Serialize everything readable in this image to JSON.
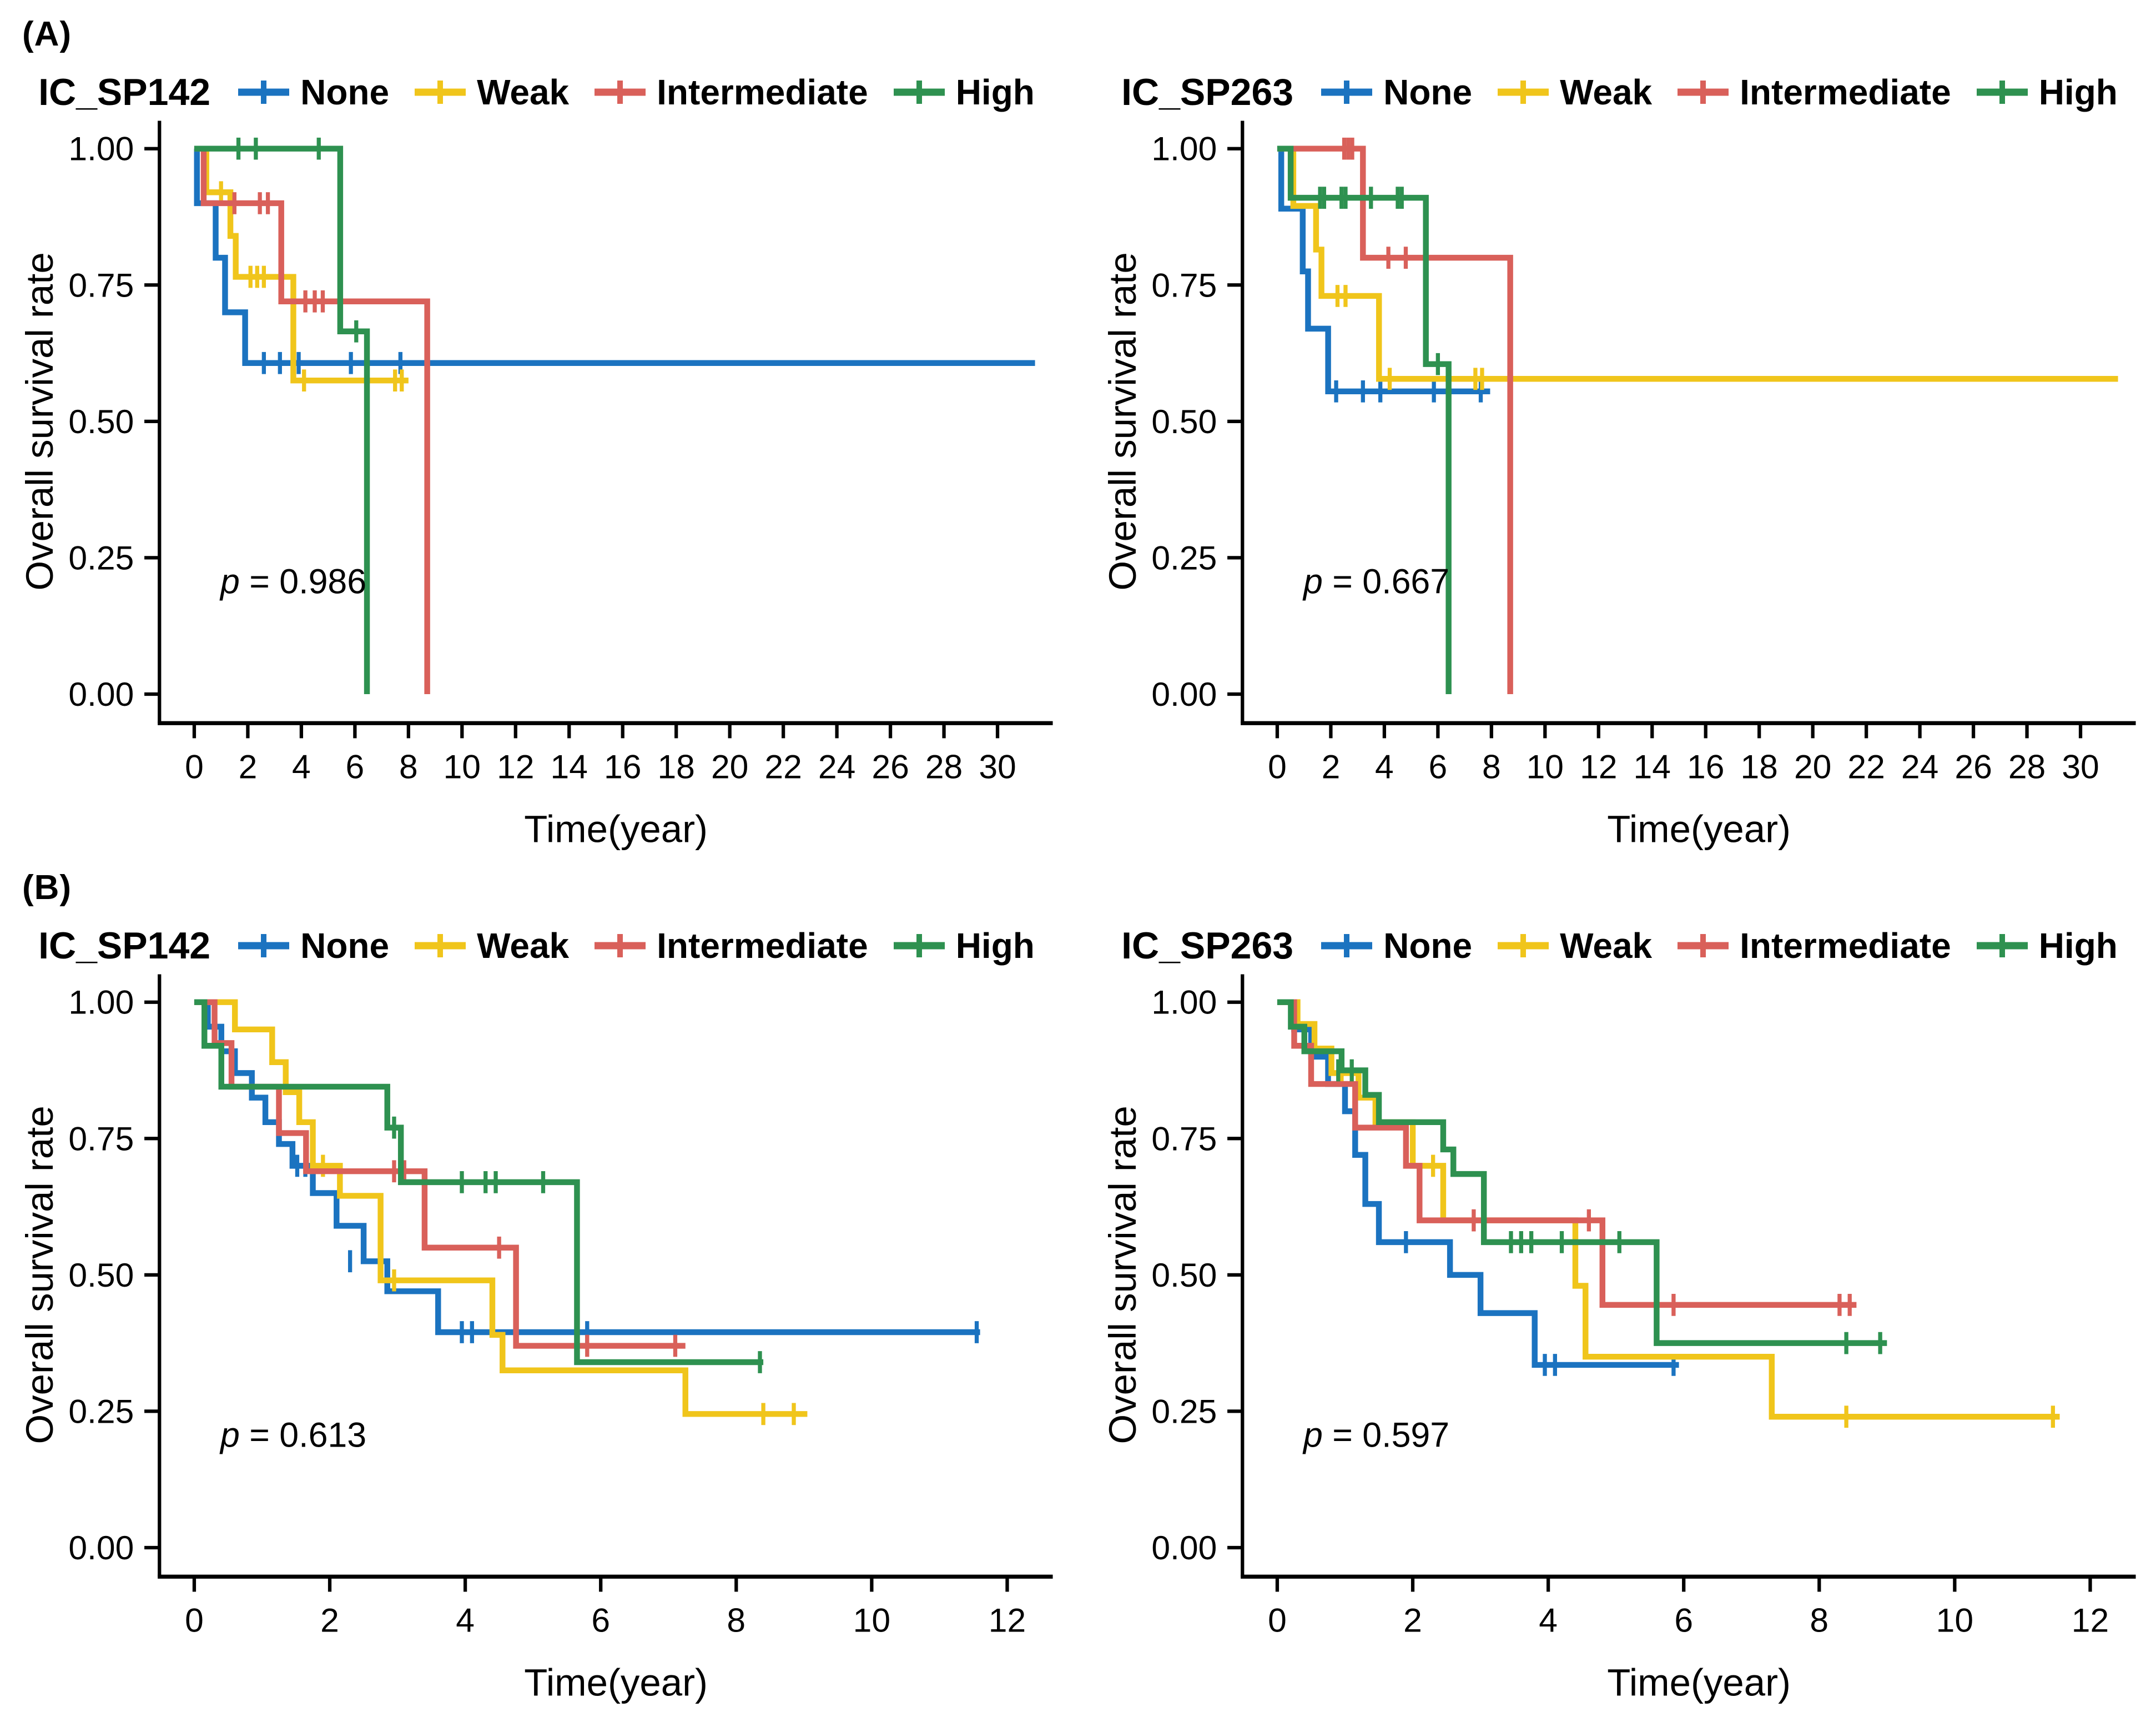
{
  "sections": {
    "a": "(A)",
    "b": "(B)"
  },
  "chart_data": {
    "type": "line",
    "subtype": "kaplan_meier_step_curves",
    "grid": "off",
    "legend_position": "top",
    "legend_marker": "plus-on-line",
    "colors": {
      "None": "#1B73C0",
      "Weak": "#F0C51B",
      "Intermediate": "#D9605A",
      "High": "#2E9150",
      "axis": "#000000",
      "text": "#000000"
    },
    "y_axis": {
      "label": "Overall survival rate",
      "tick_values": [
        0,
        0.25,
        0.5,
        0.75,
        1
      ],
      "tick_labels": [
        "0.00",
        "0.25",
        "0.50",
        "0.75",
        "1.00"
      ],
      "min": 0,
      "max": 1
    },
    "x_axis_label": "Time(year)",
    "panels": [
      {
        "id": "a_sp142",
        "section": "A",
        "title": "IC_SP142",
        "p": {
          "symbol": "p",
          "rest": " = 0.986"
        },
        "x_ticks": [
          0,
          2,
          4,
          6,
          8,
          10,
          12,
          14,
          16,
          18,
          20,
          22,
          24,
          26,
          28,
          30
        ],
        "x_domain": [
          0,
          31.5
        ],
        "series": [
          {
            "name": "None",
            "steps": [
              [
                0.1,
                0.9
              ],
              [
                0.8,
                0.8
              ],
              [
                1.15,
                0.7
              ],
              [
                1.9,
                0.607
              ]
            ],
            "end": 31.4,
            "censors": [
              [
                2.6,
                0.607
              ],
              [
                3.2,
                0.607
              ],
              [
                3.9,
                0.607
              ],
              [
                5.85,
                0.607
              ],
              [
                7.7,
                0.607
              ]
            ]
          },
          {
            "name": "Weak",
            "steps": [
              [
                0.45,
                0.92
              ],
              [
                1.35,
                0.84
              ],
              [
                1.55,
                0.765
              ],
              [
                3.7,
                0.575
              ]
            ],
            "end": 8.0,
            "censors": [
              [
                1.0,
                0.92
              ],
              [
                2.1,
                0.765
              ],
              [
                2.35,
                0.765
              ],
              [
                2.6,
                0.765
              ],
              [
                4.1,
                0.575
              ],
              [
                7.5,
                0.575
              ],
              [
                7.75,
                0.575
              ]
            ]
          },
          {
            "name": "Intermediate",
            "steps": [
              [
                0.35,
                0.9
              ],
              [
                3.25,
                0.72
              ],
              [
                8.7,
                0
              ]
            ],
            "end": 8.7,
            "censors": [
              [
                1.5,
                0.9
              ],
              [
                2.45,
                0.9
              ],
              [
                2.75,
                0.9
              ],
              [
                4.15,
                0.72
              ],
              [
                4.5,
                0.72
              ],
              [
                4.8,
                0.72
              ]
            ]
          },
          {
            "name": "High",
            "steps": [
              [
                5.45,
                0.665
              ],
              [
                6.45,
                0
              ]
            ],
            "end": 6.45,
            "censors": [
              [
                1.65,
                1
              ],
              [
                2.3,
                1
              ],
              [
                4.65,
                1
              ],
              [
                6.05,
                0.665
              ]
            ]
          }
        ]
      },
      {
        "id": "a_sp263",
        "section": "A",
        "title": "IC_SP263",
        "p": {
          "symbol": "p",
          "rest": " = 0.667"
        },
        "x_ticks": [
          0,
          2,
          4,
          6,
          8,
          10,
          12,
          14,
          16,
          18,
          20,
          22,
          24,
          26,
          28,
          30
        ],
        "x_domain": [
          0,
          31.5
        ],
        "series": [
          {
            "name": "None",
            "steps": [
              [
                0.15,
                0.89
              ],
              [
                0.95,
                0.775
              ],
              [
                1.15,
                0.67
              ],
              [
                1.9,
                0.555
              ]
            ],
            "end": 7.95,
            "censors": [
              [
                2.2,
                0.555
              ],
              [
                3.2,
                0.555
              ],
              [
                3.85,
                0.555
              ],
              [
                5.85,
                0.555
              ],
              [
                7.6,
                0.555
              ]
            ]
          },
          {
            "name": "Weak",
            "steps": [
              [
                0.6,
                0.895
              ],
              [
                1.45,
                0.815
              ],
              [
                1.65,
                0.73
              ],
              [
                3.8,
                0.578
              ]
            ],
            "end": 31.4,
            "censors": [
              [
                2.25,
                0.73
              ],
              [
                2.55,
                0.73
              ],
              [
                4.2,
                0.578
              ],
              [
                7.4,
                0.578
              ],
              [
                7.65,
                0.578
              ]
            ]
          },
          {
            "name": "Intermediate",
            "steps": [
              [
                3.2,
                0.8
              ],
              [
                8.7,
                0
              ]
            ],
            "end": 8.7,
            "censors": [
              [
                2.5,
                1
              ],
              [
                2.65,
                1
              ],
              [
                2.8,
                1
              ],
              [
                4.15,
                0.8
              ],
              [
                4.8,
                0.8
              ]
            ]
          },
          {
            "name": "High",
            "steps": [
              [
                0.5,
                0.91
              ],
              [
                5.55,
                0.605
              ],
              [
                6.4,
                0
              ]
            ],
            "end": 6.4,
            "censors": [
              [
                1.6,
                0.91
              ],
              [
                1.75,
                0.91
              ],
              [
                2.4,
                0.91
              ],
              [
                2.55,
                0.91
              ],
              [
                3.5,
                0.91
              ],
              [
                4.5,
                0.91
              ],
              [
                4.65,
                0.91
              ],
              [
                6.0,
                0.605
              ]
            ]
          }
        ]
      },
      {
        "id": "b_sp142",
        "section": "B",
        "title": "IC_SP142",
        "p": {
          "symbol": "p",
          "rest": " = 0.613"
        },
        "x_ticks": [
          0,
          2,
          4,
          6,
          8,
          10,
          12
        ],
        "x_domain": [
          0,
          12.45
        ],
        "series": [
          {
            "name": "None",
            "steps": [
              [
                0.2,
                0.955
              ],
              [
                0.4,
                0.91
              ],
              [
                0.6,
                0.87
              ],
              [
                0.85,
                0.825
              ],
              [
                1.05,
                0.78
              ],
              [
                1.25,
                0.74
              ],
              [
                1.45,
                0.7
              ],
              [
                1.75,
                0.65
              ],
              [
                2.1,
                0.59
              ],
              [
                2.5,
                0.525
              ],
              [
                2.85,
                0.47
              ],
              [
                3.6,
                0.395
              ]
            ],
            "end": 11.6,
            "censors": [
              [
                1.52,
                0.7
              ],
              [
                1.64,
                0.7
              ],
              [
                2.3,
                0.525
              ],
              [
                3.95,
                0.395
              ],
              [
                4.1,
                0.395
              ],
              [
                5.8,
                0.395
              ],
              [
                11.55,
                0.395
              ]
            ]
          },
          {
            "name": "Weak",
            "steps": [
              [
                0.6,
                0.95
              ],
              [
                1.15,
                0.89
              ],
              [
                1.35,
                0.835
              ],
              [
                1.55,
                0.78
              ],
              [
                1.75,
                0.7
              ],
              [
                2.15,
                0.645
              ],
              [
                2.75,
                0.49
              ],
              [
                4.4,
                0.39
              ],
              [
                4.55,
                0.325
              ],
              [
                7.25,
                0.245
              ]
            ],
            "end": 9.05,
            "censors": [
              [
                1.9,
                0.7
              ],
              [
                2.95,
                0.49
              ],
              [
                8.4,
                0.245
              ],
              [
                8.85,
                0.245
              ]
            ]
          },
          {
            "name": "Intermediate",
            "steps": [
              [
                0.3,
                0.925
              ],
              [
                0.55,
                0.845
              ],
              [
                1.25,
                0.76
              ],
              [
                1.65,
                0.69
              ],
              [
                3.4,
                0.55
              ],
              [
                4.75,
                0.37
              ]
            ],
            "end": 7.25,
            "censors": [
              [
                2.95,
                0.69
              ],
              [
                3.1,
                0.69
              ],
              [
                4.5,
                0.55
              ],
              [
                5.8,
                0.37
              ],
              [
                7.1,
                0.37
              ]
            ]
          },
          {
            "name": "High",
            "steps": [
              [
                0.15,
                0.92
              ],
              [
                0.4,
                0.845
              ],
              [
                2.85,
                0.77
              ],
              [
                3.05,
                0.67
              ],
              [
                5.65,
                0.34
              ]
            ],
            "end": 8.4,
            "censors": [
              [
                2.95,
                0.77
              ],
              [
                3.95,
                0.67
              ],
              [
                4.3,
                0.67
              ],
              [
                4.45,
                0.67
              ],
              [
                5.15,
                0.67
              ],
              [
                8.35,
                0.34
              ]
            ]
          }
        ]
      },
      {
        "id": "b_sp263",
        "section": "B",
        "title": "IC_SP263",
        "p": {
          "symbol": "p",
          "rest": " = 0.597"
        },
        "x_ticks": [
          0,
          2,
          4,
          6,
          8,
          10,
          12
        ],
        "x_domain": [
          0,
          12.45
        ],
        "series": [
          {
            "name": "None",
            "steps": [
              [
                0.25,
                0.95
              ],
              [
                0.5,
                0.9
              ],
              [
                0.75,
                0.85
              ],
              [
                1.0,
                0.8
              ],
              [
                1.15,
                0.72
              ],
              [
                1.3,
                0.63
              ],
              [
                1.5,
                0.56
              ],
              [
                2.55,
                0.5
              ],
              [
                3.0,
                0.43
              ],
              [
                3.8,
                0.335
              ]
            ],
            "end": 5.93,
            "censors": [
              [
                1.9,
                0.56
              ],
              [
                3.95,
                0.335
              ],
              [
                4.1,
                0.335
              ],
              [
                5.85,
                0.335
              ]
            ]
          },
          {
            "name": "Weak",
            "steps": [
              [
                0.3,
                0.96
              ],
              [
                0.55,
                0.915
              ],
              [
                0.8,
                0.87
              ],
              [
                1.2,
                0.825
              ],
              [
                1.45,
                0.78
              ],
              [
                2.0,
                0.7
              ],
              [
                2.45,
                0.6
              ],
              [
                4.4,
                0.48
              ],
              [
                4.55,
                0.35
              ],
              [
                7.3,
                0.24
              ]
            ],
            "end": 11.55,
            "censors": [
              [
                0.95,
                0.87
              ],
              [
                2.3,
                0.7
              ],
              [
                8.4,
                0.24
              ],
              [
                11.45,
                0.24
              ]
            ]
          },
          {
            "name": "Intermediate",
            "steps": [
              [
                0.25,
                0.92
              ],
              [
                0.5,
                0.85
              ],
              [
                1.15,
                0.77
              ],
              [
                1.9,
                0.7
              ],
              [
                2.1,
                0.6
              ],
              [
                4.8,
                0.445
              ]
            ],
            "end": 8.55,
            "censors": [
              [
                2.9,
                0.6
              ],
              [
                3.05,
                0.6
              ],
              [
                4.6,
                0.6
              ],
              [
                5.85,
                0.445
              ],
              [
                8.3,
                0.445
              ],
              [
                8.45,
                0.445
              ]
            ]
          },
          {
            "name": "High",
            "steps": [
              [
                0.2,
                0.955
              ],
              [
                0.4,
                0.91
              ],
              [
                0.95,
                0.875
              ],
              [
                1.3,
                0.83
              ],
              [
                1.5,
                0.78
              ],
              [
                2.45,
                0.73
              ],
              [
                2.6,
                0.685
              ],
              [
                3.05,
                0.56
              ],
              [
                5.6,
                0.375
              ]
            ],
            "end": 9.0,
            "censors": [
              [
                0.9,
                0.875
              ],
              [
                1.1,
                0.875
              ],
              [
                3.45,
                0.56
              ],
              [
                3.6,
                0.56
              ],
              [
                3.75,
                0.56
              ],
              [
                4.2,
                0.56
              ],
              [
                5.05,
                0.56
              ],
              [
                8.4,
                0.375
              ],
              [
                8.9,
                0.375
              ]
            ]
          }
        ]
      }
    ]
  }
}
